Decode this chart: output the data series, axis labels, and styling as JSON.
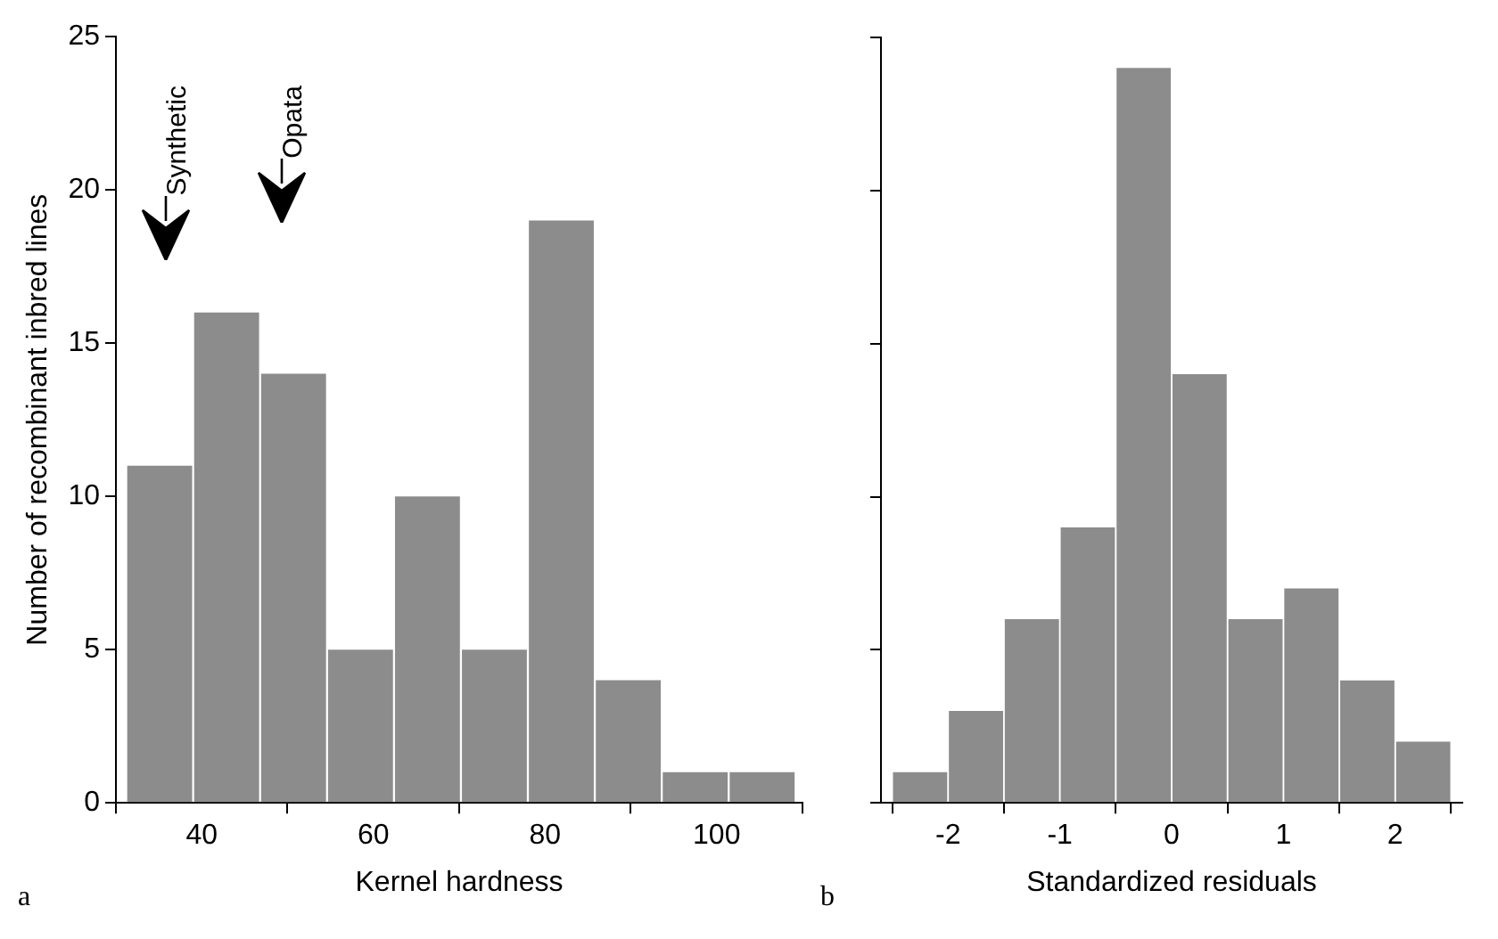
{
  "chart_data": [
    {
      "type": "histogram",
      "xlabel": "Kernel hardness",
      "ylabel": "Number of recombinant inbred lines",
      "bins": [
        31.2,
        39,
        46.8,
        54.6,
        62.4,
        70.2,
        78,
        85.8,
        93.6,
        101.4,
        109.2
      ],
      "values": [
        11,
        16,
        14,
        5,
        10,
        5,
        19,
        4,
        1,
        1
      ],
      "color": "#8c8c8c",
      "xlim": [
        30,
        110
      ],
      "xticks": [
        40,
        60,
        80,
        100
      ],
      "ylim": [
        0,
        25
      ],
      "yticks": [
        0,
        5,
        10,
        15,
        20,
        25
      ],
      "annotations": [
        "a",
        "Synthetic",
        "Opata"
      ]
    },
    {
      "type": "histogram",
      "xlabel": "Standardized residuals",
      "bins": [
        -2.5,
        -2,
        -1.5,
        -1,
        -0.5,
        0,
        0.5,
        1,
        1.5,
        2,
        2.5
      ],
      "values": [
        1,
        3,
        6,
        9,
        24,
        14,
        6,
        7,
        4,
        2
      ],
      "color": "#8c8c8c",
      "xlim": [
        -2.6,
        2.6
      ],
      "xticks": [
        -2,
        -1,
        0,
        1,
        2
      ],
      "ylim": [
        0,
        25
      ],
      "yticks": [
        0,
        5,
        10,
        15,
        20,
        25
      ],
      "tick_labels": "x",
      "annotations": [
        "b"
      ]
    }
  ]
}
